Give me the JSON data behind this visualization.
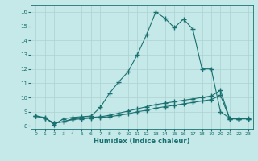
{
  "title": "",
  "xlabel": "Humidex (Indice chaleur)",
  "ylabel": "",
  "xlim": [
    -0.5,
    23.5
  ],
  "ylim": [
    7.8,
    16.5
  ],
  "xticks": [
    0,
    1,
    2,
    3,
    4,
    5,
    6,
    7,
    8,
    9,
    10,
    11,
    12,
    13,
    14,
    15,
    16,
    17,
    18,
    19,
    20,
    21,
    22,
    23
  ],
  "yticks": [
    8,
    9,
    10,
    11,
    12,
    13,
    14,
    15,
    16
  ],
  "background_color": "#c5e8e8",
  "grid_color": "#aed0d0",
  "line_color": "#1a7070",
  "line1_x": [
    0,
    1,
    2,
    3,
    4,
    5,
    6,
    7,
    8,
    9,
    10,
    11,
    12,
    13,
    14,
    15,
    16,
    17,
    18,
    19,
    20,
    21,
    22,
    23
  ],
  "line1_y": [
    8.7,
    8.6,
    8.1,
    8.5,
    8.6,
    8.65,
    8.7,
    9.3,
    10.3,
    11.1,
    11.8,
    13.0,
    14.4,
    16.0,
    15.55,
    14.9,
    15.5,
    14.8,
    12.0,
    12.0,
    9.0,
    8.55,
    8.5,
    8.55
  ],
  "line2_x": [
    0,
    1,
    2,
    3,
    4,
    5,
    6,
    7,
    8,
    9,
    10,
    11,
    12,
    13,
    14,
    15,
    16,
    17,
    18,
    19,
    20,
    21,
    22,
    23
  ],
  "line2_y": [
    8.7,
    8.55,
    8.2,
    8.3,
    8.5,
    8.55,
    8.6,
    8.65,
    8.75,
    8.9,
    9.05,
    9.2,
    9.35,
    9.5,
    9.6,
    9.7,
    9.8,
    9.9,
    10.0,
    10.1,
    10.5,
    8.5,
    8.5,
    8.5
  ],
  "line3_x": [
    0,
    1,
    2,
    3,
    4,
    5,
    6,
    7,
    8,
    9,
    10,
    11,
    12,
    13,
    14,
    15,
    16,
    17,
    18,
    19,
    20,
    21,
    22,
    23
  ],
  "line3_y": [
    8.7,
    8.55,
    8.2,
    8.3,
    8.45,
    8.5,
    8.55,
    8.6,
    8.65,
    8.75,
    8.85,
    9.0,
    9.1,
    9.25,
    9.35,
    9.45,
    9.55,
    9.65,
    9.75,
    9.85,
    10.15,
    8.5,
    8.5,
    8.5
  ],
  "figsize": [
    3.2,
    2.0
  ],
  "dpi": 100
}
